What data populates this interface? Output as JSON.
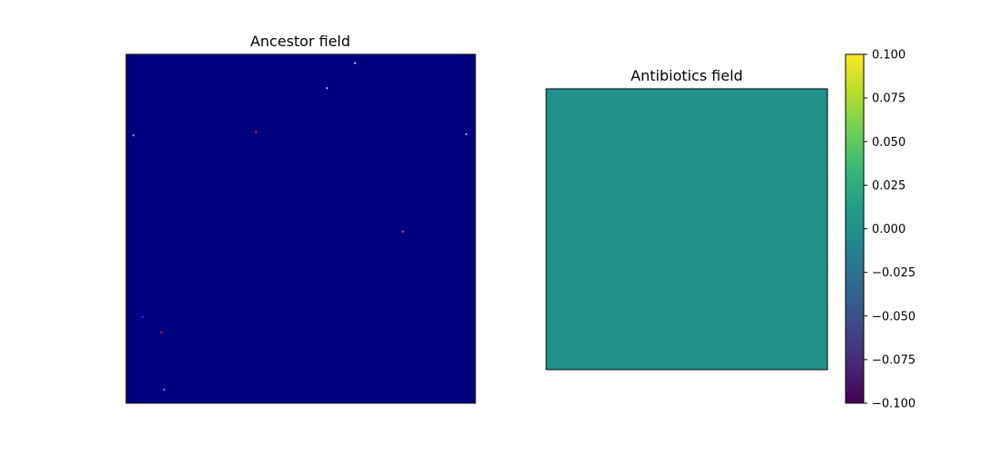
{
  "chart_data": [
    {
      "type": "heatmap",
      "title": "Ancestor field",
      "xlabel": "",
      "ylabel": "",
      "axis_ticks": false,
      "grid": false,
      "background_color": "#000080",
      "colormap": "jet",
      "points": [
        {
          "x": 0.655,
          "y": 0.975,
          "color": "#c8c8ff"
        },
        {
          "x": 0.575,
          "y": 0.903,
          "color": "#c8c8ff"
        },
        {
          "x": 0.372,
          "y": 0.777,
          "color": "#ff2020"
        },
        {
          "x": 0.021,
          "y": 0.768,
          "color": "#8aa8ff"
        },
        {
          "x": 0.974,
          "y": 0.771,
          "color": "#8aa8ff"
        },
        {
          "x": 0.792,
          "y": 0.492,
          "color": "#ff5030"
        },
        {
          "x": 0.047,
          "y": 0.247,
          "color": "#1e3cff"
        },
        {
          "x": 0.101,
          "y": 0.203,
          "color": "#ff2020"
        },
        {
          "x": 0.109,
          "y": 0.039,
          "color": "#6a8cff"
        }
      ]
    },
    {
      "type": "heatmap",
      "title": "Antibiotics field",
      "xlabel": "",
      "ylabel": "",
      "axis_ticks": false,
      "grid": false,
      "value": 0.0,
      "fill_color": "#21918c",
      "colormap": "viridis",
      "colorbar": {
        "vmin": -0.1,
        "vmax": 0.1,
        "ticks": [
          "0.100",
          "0.075",
          "0.050",
          "0.025",
          "0.000",
          "−0.025",
          "−0.050",
          "−0.075",
          "−0.100"
        ],
        "tick_values": [
          0.1,
          0.075,
          0.05,
          0.025,
          0.0,
          -0.025,
          -0.05,
          -0.075,
          -0.1
        ],
        "stops": [
          "#440154",
          "#482878",
          "#3e4989",
          "#31688e",
          "#26828e",
          "#1f9e89",
          "#35b779",
          "#6ece58",
          "#b5de2b",
          "#fde725"
        ]
      }
    }
  ]
}
